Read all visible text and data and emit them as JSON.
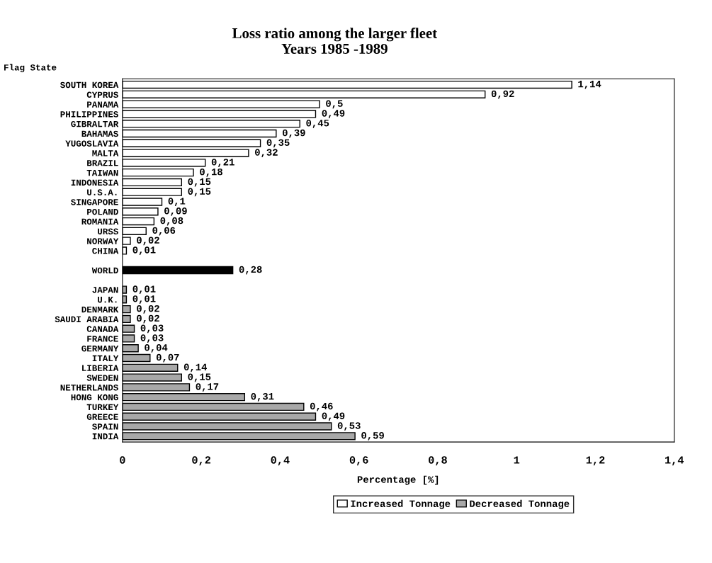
{
  "chart_data": {
    "type": "bar",
    "orientation": "horizontal",
    "title": "Loss ratio among the larger fleet\nYears 1985 -1989",
    "ylabel": "Flag State",
    "xlabel": "Percentage [%]",
    "categories": [
      "SOUTH KOREA",
      "CYPRUS",
      "PANAMA",
      "PHILIPPINES",
      "GIBRALTAR",
      "BAHAMAS",
      "YUGOSLAVIA",
      "MALTA",
      "BRAZIL",
      "TAIWAN",
      "INDONESIA",
      "U.S.A.",
      "SINGAPORE",
      "POLAND",
      "ROMANIA",
      "URSS",
      "NORWAY",
      "CHINA",
      null,
      "WORLD",
      null,
      "JAPAN",
      "U.K.",
      "DENMARK",
      "SAUDI ARABIA",
      "CANADA",
      "FRANCE",
      "GERMANY",
      "ITALY",
      "LIBERIA",
      "SWEDEN",
      "NETHERLANDS",
      "HONG KONG",
      "TURKEY",
      "GREECE",
      "SPAIN",
      "INDIA"
    ],
    "series": [
      {
        "name": "Increased Tonnage",
        "color": "#ffffff",
        "values": [
          1.14,
          0.92,
          0.5,
          0.49,
          0.45,
          0.39,
          0.35,
          0.32,
          0.21,
          0.18,
          0.15,
          0.15,
          0.1,
          0.09,
          0.08,
          0.06,
          0.02,
          0.01,
          null,
          null,
          null,
          null,
          null,
          null,
          null,
          null,
          null,
          null,
          null,
          null,
          null,
          null,
          null,
          null,
          null,
          null,
          null
        ],
        "value_labels": [
          "1,14",
          "0,92",
          "0,5",
          "0,49",
          "0,45",
          "0,39",
          "0,35",
          "0,32",
          "0,21",
          "0,18",
          "0,15",
          "0,15",
          "0,1",
          "0,09",
          "0,08",
          "0,06",
          "0,02",
          "0,01",
          null,
          null,
          null,
          null,
          null,
          null,
          null,
          null,
          null,
          null,
          null,
          null,
          null,
          null,
          null,
          null,
          null,
          null,
          null
        ]
      },
      {
        "color": "#000000",
        "values": [
          null,
          null,
          null,
          null,
          null,
          null,
          null,
          null,
          null,
          null,
          null,
          null,
          null,
          null,
          null,
          null,
          null,
          null,
          null,
          0.28,
          null,
          null,
          null,
          null,
          null,
          null,
          null,
          null,
          null,
          null,
          null,
          null,
          null,
          null,
          null,
          null,
          null
        ],
        "value_labels": [
          null,
          null,
          null,
          null,
          null,
          null,
          null,
          null,
          null,
          null,
          null,
          null,
          null,
          null,
          null,
          null,
          null,
          null,
          null,
          "0,28",
          null,
          null,
          null,
          null,
          null,
          null,
          null,
          null,
          null,
          null,
          null,
          null,
          null,
          null,
          null,
          null,
          null
        ]
      },
      {
        "name": "Decreased Tonnage",
        "color": "#a8a8a8",
        "values": [
          null,
          null,
          null,
          null,
          null,
          null,
          null,
          null,
          null,
          null,
          null,
          null,
          null,
          null,
          null,
          null,
          null,
          null,
          null,
          null,
          null,
          0.01,
          0.01,
          0.02,
          0.02,
          0.03,
          0.03,
          0.04,
          0.07,
          0.14,
          0.15,
          0.17,
          0.31,
          0.46,
          0.49,
          0.53,
          0.59
        ],
        "value_labels": [
          null,
          null,
          null,
          null,
          null,
          null,
          null,
          null,
          null,
          null,
          null,
          null,
          null,
          null,
          null,
          null,
          null,
          null,
          null,
          null,
          null,
          "0,01",
          "0,01",
          "0,02",
          "0,02",
          "0,03",
          "0,03",
          "0,04",
          "0,07",
          "0,14",
          "0,15",
          "0,17",
          "0,31",
          "0,46",
          "0,49",
          "0,53",
          "0,59"
        ]
      }
    ],
    "xlim": [
      0,
      1.4
    ],
    "xticks": [
      0,
      {
        "value": 0.2,
        "label": "0,2"
      },
      {
        "value": 0.4,
        "label": "0,4"
      },
      {
        "value": 0.6,
        "label": "0,6"
      },
      {
        "value": 0.8,
        "label": "0,8"
      },
      1,
      {
        "value": 1.2,
        "label": "1,2"
      },
      {
        "value": 1.4,
        "label": "1,4"
      }
    ],
    "grid": false,
    "legend": "bottom"
  }
}
